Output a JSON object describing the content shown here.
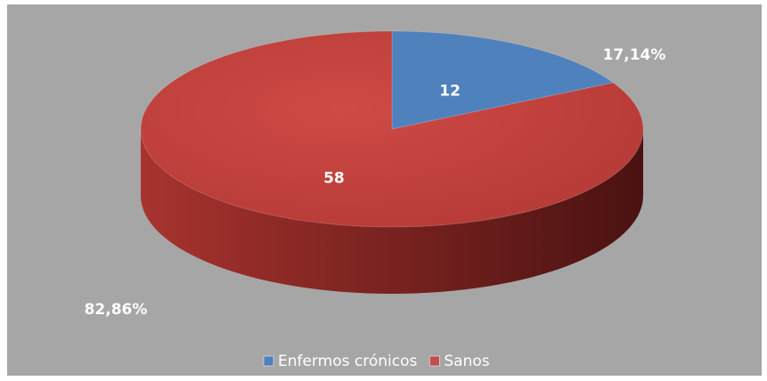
{
  "chart_data": {
    "type": "pie",
    "categories": [
      "Enfermos crónicos",
      "Sanos"
    ],
    "values": [
      12,
      58
    ],
    "colors": [
      "#4f81bd",
      "#c0504d"
    ],
    "percentages": [
      {
        "value": 17.14,
        "label": "17,14%"
      },
      {
        "value": 82.86,
        "label": "82,86%"
      }
    ],
    "legend": "bottom"
  }
}
